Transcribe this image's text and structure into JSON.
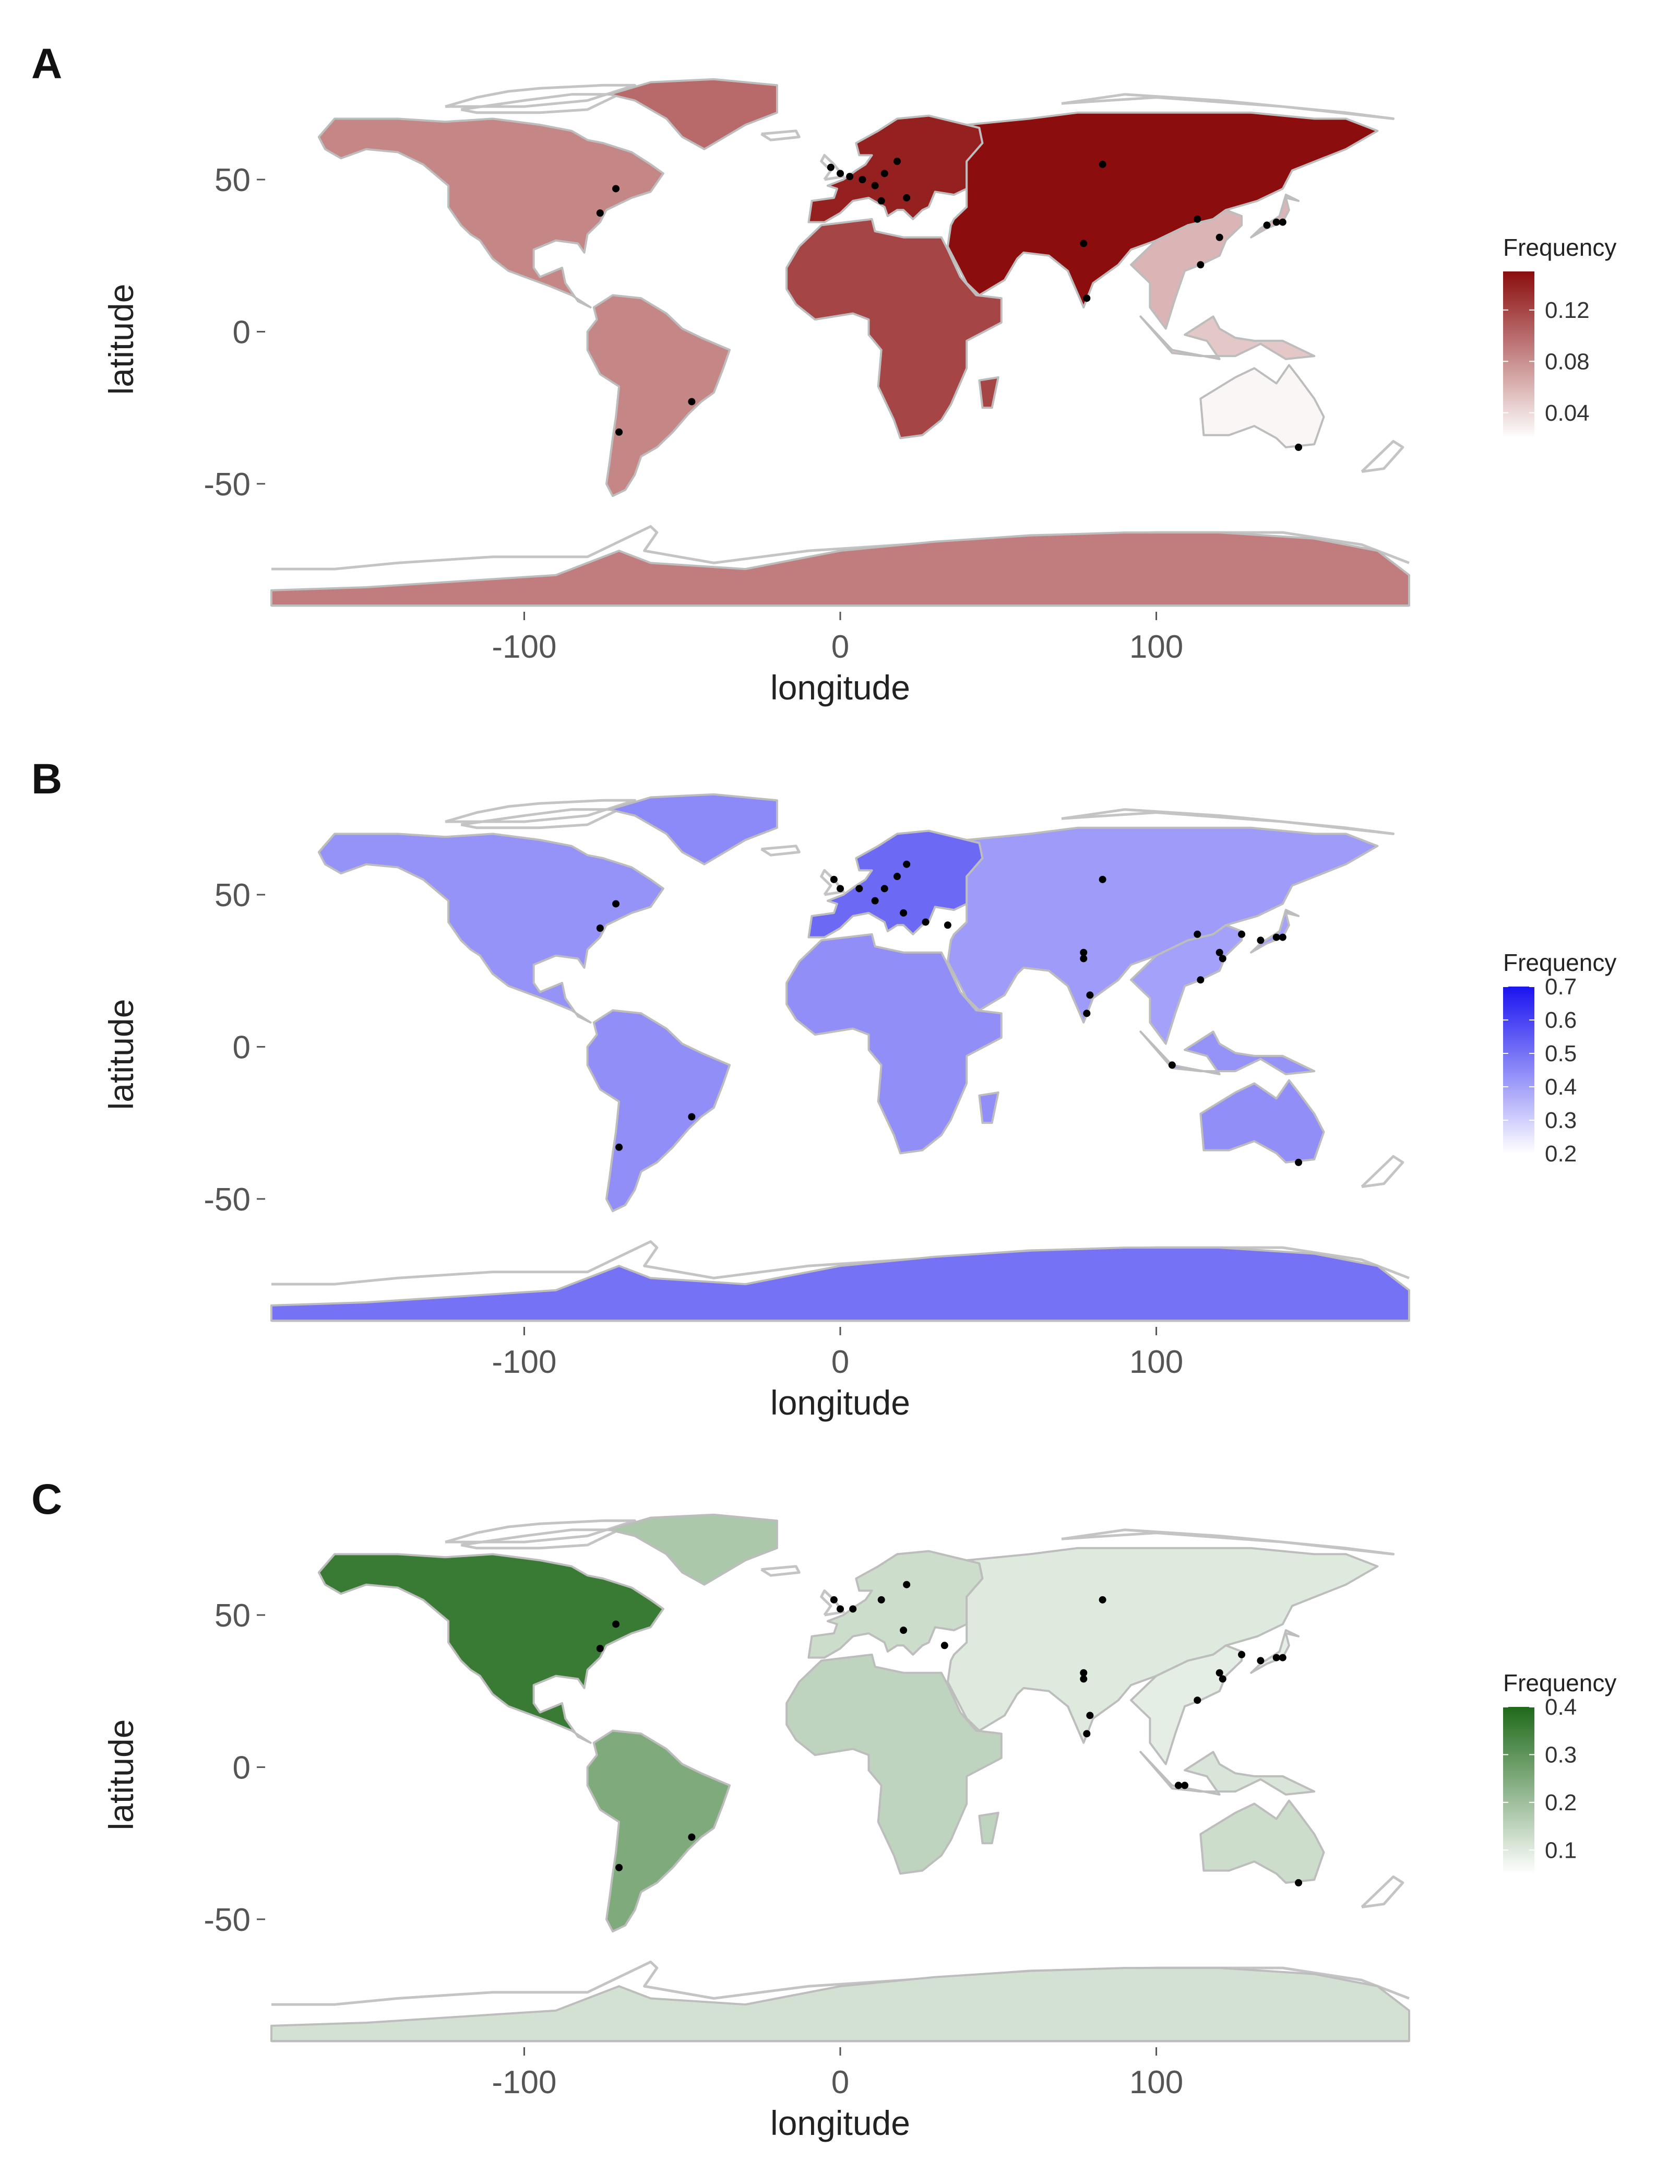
{
  "panels": [
    {
      "id": "A",
      "letter": "A",
      "xlabel": "longitude",
      "ylabel": "latitude",
      "legend": {
        "title": "Frequency",
        "labels": [
          "0.12",
          "0.08",
          "0.04"
        ],
        "values": [
          0.12,
          0.08,
          0.04
        ],
        "range": [
          0.02,
          0.15
        ],
        "color_low": "#ffffff",
        "color_high": "#8b0d0d"
      },
      "region_values": {
        "north_america": 0.085,
        "south_america": 0.085,
        "europe": 0.14,
        "central_asia": 0.155,
        "africa": 0.12,
        "east_asia": 0.06,
        "southeast_asia": 0.05,
        "australia": 0.025,
        "antarctica": 0.09,
        "greenland": 0.1
      }
    },
    {
      "id": "B",
      "letter": "B",
      "xlabel": "longitude",
      "ylabel": "latitude",
      "legend": {
        "title": "Frequency",
        "labels": [
          "0.7",
          "0.6",
          "0.5",
          "0.4",
          "0.3",
          "0.2"
        ],
        "values": [
          0.7,
          0.6,
          0.5,
          0.4,
          0.3,
          0.2
        ],
        "range": [
          0.2,
          0.7
        ],
        "color_low": "#ffffff",
        "color_high": "#1a14f0"
      },
      "region_values": {
        "north_america": 0.43,
        "south_america": 0.44,
        "europe": 0.52,
        "central_asia": 0.41,
        "africa": 0.44,
        "east_asia": 0.4,
        "southeast_asia": 0.43,
        "australia": 0.44,
        "antarctica": 0.5,
        "greenland": 0.45
      }
    },
    {
      "id": "C",
      "letter": "C",
      "xlabel": "longitude",
      "ylabel": "latitude",
      "legend": {
        "title": "Frequency",
        "labels": [
          "0.4",
          "0.3",
          "0.2",
          "0.1"
        ],
        "values": [
          0.4,
          0.3,
          0.2,
          0.1
        ],
        "range": [
          0.05,
          0.4
        ],
        "color_low": "#ffffff",
        "color_high": "#1f6a1a"
      },
      "region_values": {
        "north_america": 0.36,
        "south_america": 0.25,
        "europe": 0.13,
        "central_asia": 0.1,
        "africa": 0.15,
        "east_asia": 0.09,
        "southeast_asia": 0.11,
        "australia": 0.13,
        "antarctica": 0.12,
        "greenland": 0.18
      }
    }
  ],
  "axes": {
    "x_ticks": [
      -100,
      0,
      100
    ],
    "x_tick_labels": [
      "-100",
      "0",
      "100"
    ],
    "y_ticks": [
      50,
      0,
      -50
    ],
    "y_tick_labels": [
      "50",
      "0",
      "-50"
    ],
    "xlim": [
      -180,
      180
    ],
    "ylim": [
      -90,
      85
    ]
  },
  "sample_sites": {
    "A": [
      [
        -76,
        39
      ],
      [
        -71,
        47
      ],
      [
        -47,
        -23
      ],
      [
        -70,
        -33
      ],
      [
        -3,
        54
      ],
      [
        0,
        52
      ],
      [
        3,
        51
      ],
      [
        7,
        50
      ],
      [
        11,
        48
      ],
      [
        14,
        52
      ],
      [
        18,
        56
      ],
      [
        21,
        44
      ],
      [
        13,
        43
      ],
      [
        83,
        55
      ],
      [
        77,
        29
      ],
      [
        78,
        11
      ],
      [
        113,
        37
      ],
      [
        114,
        22
      ],
      [
        120,
        31
      ],
      [
        135,
        35
      ],
      [
        138,
        36
      ],
      [
        140,
        36
      ],
      [
        145,
        -38
      ]
    ],
    "B": [
      [
        -76,
        39
      ],
      [
        -71,
        47
      ],
      [
        -47,
        -23
      ],
      [
        -70,
        -33
      ],
      [
        -2,
        55
      ],
      [
        0,
        52
      ],
      [
        6,
        52
      ],
      [
        11,
        48
      ],
      [
        14,
        52
      ],
      [
        18,
        56
      ],
      [
        21,
        60
      ],
      [
        20,
        44
      ],
      [
        27,
        41
      ],
      [
        34,
        40
      ],
      [
        83,
        55
      ],
      [
        77,
        31
      ],
      [
        77,
        29
      ],
      [
        79,
        17
      ],
      [
        78,
        11
      ],
      [
        105,
        -6
      ],
      [
        113,
        37
      ],
      [
        114,
        22
      ],
      [
        120,
        31
      ],
      [
        121,
        29
      ],
      [
        127,
        37
      ],
      [
        133,
        35
      ],
      [
        138,
        36
      ],
      [
        140,
        36
      ],
      [
        145,
        -38
      ]
    ],
    "C": [
      [
        -76,
        39
      ],
      [
        -71,
        47
      ],
      [
        -47,
        -23
      ],
      [
        -70,
        -33
      ],
      [
        -2,
        55
      ],
      [
        0,
        52
      ],
      [
        4,
        52
      ],
      [
        13,
        55
      ],
      [
        21,
        60
      ],
      [
        20,
        45
      ],
      [
        33,
        40
      ],
      [
        83,
        55
      ],
      [
        77,
        31
      ],
      [
        77,
        29
      ],
      [
        79,
        17
      ],
      [
        78,
        11
      ],
      [
        107,
        -6
      ],
      [
        109,
        -6
      ],
      [
        113,
        22
      ],
      [
        120,
        31
      ],
      [
        121,
        29
      ],
      [
        127,
        37
      ],
      [
        133,
        35
      ],
      [
        138,
        36
      ],
      [
        140,
        36
      ],
      [
        145,
        -38
      ]
    ]
  }
}
